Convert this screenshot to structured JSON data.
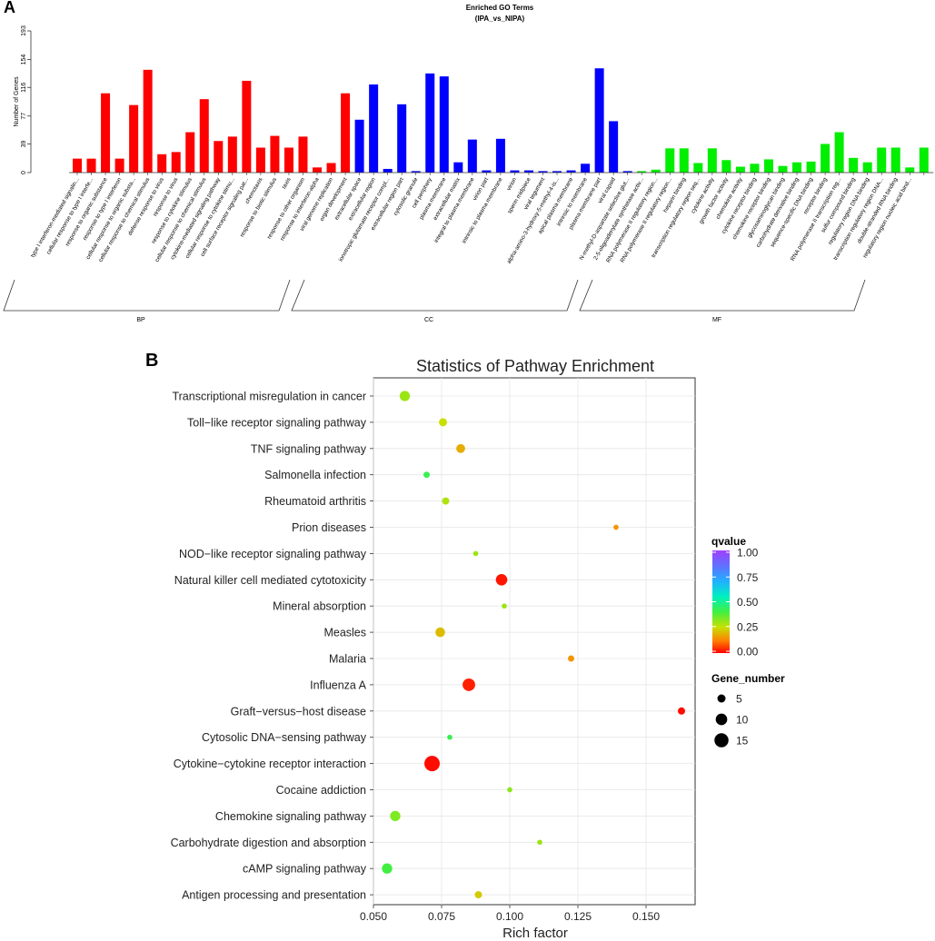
{
  "panel_a": {
    "label": "A",
    "chart_data": {
      "type": "bar",
      "title": "Enriched GO Terms",
      "subtitle": "(IPA_vs_NIPA)",
      "ylabel": "Number of Genes",
      "ylim": [
        0,
        193
      ],
      "yticks": [
        0,
        39,
        77,
        116,
        154,
        193
      ],
      "group_labels": [
        "BP",
        "CC",
        "MF"
      ],
      "colors": {
        "BP": "#ff0000",
        "CC": "#0000ff",
        "MF": "#00ee00"
      },
      "categories": [
        {
          "label": "type I interferon-mediated signalin...",
          "group": "BP",
          "value": 19
        },
        {
          "label": "cellular response to type I interfe...",
          "group": "BP",
          "value": 19
        },
        {
          "label": "response to organic substance",
          "group": "BP",
          "value": 108
        },
        {
          "label": "response to type I interferon",
          "group": "BP",
          "value": 19
        },
        {
          "label": "cellular response to organic substa...",
          "group": "BP",
          "value": 92
        },
        {
          "label": "cellular response to chemical stimulus",
          "group": "BP",
          "value": 140
        },
        {
          "label": "defense response to virus",
          "group": "BP",
          "value": 25
        },
        {
          "label": "response to virus",
          "group": "BP",
          "value": 28
        },
        {
          "label": "response to cytokine stimulus",
          "group": "BP",
          "value": 55
        },
        {
          "label": "cellular response to chemical stimulus",
          "group": "BP",
          "value": 100
        },
        {
          "label": "cytokine-mediated signaling pathway",
          "group": "BP",
          "value": 43
        },
        {
          "label": "cellular response to cytokine stimu...",
          "group": "BP",
          "value": 49
        },
        {
          "label": "cell surface receptor signaling pat...",
          "group": "BP",
          "value": 125
        },
        {
          "label": "chemotaxis",
          "group": "BP",
          "value": 34
        },
        {
          "label": "response to biotic stimulus",
          "group": "BP",
          "value": 50
        },
        {
          "label": "taxis",
          "group": "BP",
          "value": 34
        },
        {
          "label": "response to other organism",
          "group": "BP",
          "value": 49
        },
        {
          "label": "response to interferon-alpha",
          "group": "BP",
          "value": 7
        },
        {
          "label": "viral genome replication",
          "group": "BP",
          "value": 13
        },
        {
          "label": "organ development",
          "group": "BP",
          "value": 108
        },
        {
          "label": "extracellular space",
          "group": "CC",
          "value": 72
        },
        {
          "label": "extracellular region",
          "group": "CC",
          "value": 120
        },
        {
          "label": "ionotropic glutamate receptor compl...",
          "group": "CC",
          "value": 5
        },
        {
          "label": "extracellular region part",
          "group": "CC",
          "value": 93
        },
        {
          "label": "cytosolic granule",
          "group": "CC",
          "value": 2
        },
        {
          "label": "cell periphery",
          "group": "CC",
          "value": 135
        },
        {
          "label": "plasma membrane",
          "group": "CC",
          "value": 131
        },
        {
          "label": "extracellular matrix",
          "group": "CC",
          "value": 14
        },
        {
          "label": "integral to plasma membrane",
          "group": "CC",
          "value": 45
        },
        {
          "label": "virion part",
          "group": "CC",
          "value": 3
        },
        {
          "label": "intrinsic to plasma membrane",
          "group": "CC",
          "value": 46
        },
        {
          "label": "virion",
          "group": "CC",
          "value": 3
        },
        {
          "label": "sperm midpiece",
          "group": "CC",
          "value": 3
        },
        {
          "label": "viral tegument",
          "group": "CC",
          "value": 2
        },
        {
          "label": "alpha-amino-3-hydroxy-5-methyl-4-is...",
          "group": "CC",
          "value": 2
        },
        {
          "label": "apical plasma membrane",
          "group": "CC",
          "value": 3
        },
        {
          "label": "intrinsic to membrane",
          "group": "CC",
          "value": 12
        },
        {
          "label": "plasma membrane part",
          "group": "CC",
          "value": 142
        },
        {
          "label": "viral capsid",
          "group": "CC",
          "value": 70
        },
        {
          "label": "N-methyl-D-aspartate selective glut...",
          "group": "CC",
          "value": 2
        },
        {
          "label": "2-5-oligoadenylate synthetase activ...",
          "group": "MF",
          "value": 2
        },
        {
          "label": "RNA polymerase II regulatory region...",
          "group": "MF",
          "value": 4
        },
        {
          "label": "RNA polymerase II regulatory region...",
          "group": "MF",
          "value": 33
        },
        {
          "label": "heparin binding",
          "group": "MF",
          "value": 33
        },
        {
          "label": "transcription regulatory region seq...",
          "group": "MF",
          "value": 13
        },
        {
          "label": "cytokine activity",
          "group": "MF",
          "value": 33
        },
        {
          "label": "growth factor activity",
          "group": "MF",
          "value": 17
        },
        {
          "label": "chemokine activity",
          "group": "MF",
          "value": 8
        },
        {
          "label": "cytokine receptor binding",
          "group": "MF",
          "value": 12
        },
        {
          "label": "chemokine receptor binding",
          "group": "MF",
          "value": 18
        },
        {
          "label": "glycosaminoglycan binding",
          "group": "MF",
          "value": 9
        },
        {
          "label": "carbohydrate derivative binding",
          "group": "MF",
          "value": 14
        },
        {
          "label": "sequence-specific DNA binding",
          "group": "MF",
          "value": 15
        },
        {
          "label": "receptor binding",
          "group": "MF",
          "value": 39
        },
        {
          "label": "RNA polymerase II transcription reg...",
          "group": "MF",
          "value": 55
        },
        {
          "label": "sulfur compound binding",
          "group": "MF",
          "value": 20
        },
        {
          "label": "regulatory region DNA binding",
          "group": "MF",
          "value": 14
        },
        {
          "label": "transcription regulatory region DNA...",
          "group": "MF",
          "value": 34
        },
        {
          "label": "double-stranded RNA binding",
          "group": "MF",
          "value": 34
        },
        {
          "label": "regulatory region nucleic acid bind...",
          "group": "MF",
          "value": 7
        },
        {
          "label": "",
          "group": "MF",
          "value": 34
        }
      ]
    }
  },
  "panel_b": {
    "label": "B",
    "chart_data": {
      "type": "scatter",
      "title": "Statistics of Pathway Enrichment",
      "xlabel": "Rich factor",
      "xlim": [
        0.05,
        0.168
      ],
      "xticks": [
        "0.050",
        "0.075",
        "0.100",
        "0.125",
        "0.150"
      ],
      "legend": {
        "color_title": "qvalue",
        "color_ticks": [
          "1.00",
          "0.75",
          "0.50",
          "0.25",
          "0.00"
        ],
        "size_title": "Gene_number",
        "size_values": [
          5,
          10,
          15
        ],
        "size_labels": [
          "5",
          "10",
          "15"
        ]
      },
      "points": [
        {
          "pathway": "Transcriptional misregulation in cancer",
          "rich_factor": 0.0615,
          "qvalue": 0.3,
          "gene_number": 8
        },
        {
          "pathway": "Toll−like receptor signaling pathway",
          "rich_factor": 0.0755,
          "qvalue": 0.25,
          "gene_number": 5
        },
        {
          "pathway": "TNF signaling pathway",
          "rich_factor": 0.082,
          "qvalue": 0.18,
          "gene_number": 6
        },
        {
          "pathway": "Salmonella infection",
          "rich_factor": 0.0695,
          "qvalue": 0.42,
          "gene_number": 3
        },
        {
          "pathway": "Rheumatoid arthritis",
          "rich_factor": 0.0765,
          "qvalue": 0.28,
          "gene_number": 4
        },
        {
          "pathway": "Prion diseases",
          "rich_factor": 0.139,
          "qvalue": 0.15,
          "gene_number": 2
        },
        {
          "pathway": "NOD−like receptor signaling pathway",
          "rich_factor": 0.0875,
          "qvalue": 0.3,
          "gene_number": 2
        },
        {
          "pathway": "Natural killer cell mediated cytotoxicity",
          "rich_factor": 0.097,
          "qvalue": 0.02,
          "gene_number": 10
        },
        {
          "pathway": "Mineral absorption",
          "rich_factor": 0.098,
          "qvalue": 0.3,
          "gene_number": 2
        },
        {
          "pathway": "Measles",
          "rich_factor": 0.0745,
          "qvalue": 0.2,
          "gene_number": 7
        },
        {
          "pathway": "Malaria",
          "rich_factor": 0.1225,
          "qvalue": 0.15,
          "gene_number": 3
        },
        {
          "pathway": "Influenza A",
          "rich_factor": 0.085,
          "qvalue": 0.03,
          "gene_number": 12
        },
        {
          "pathway": "Graft−versus−host disease",
          "rich_factor": 0.163,
          "qvalue": 0.01,
          "gene_number": 4
        },
        {
          "pathway": "Cytosolic DNA−sensing pathway",
          "rich_factor": 0.078,
          "qvalue": 0.42,
          "gene_number": 2
        },
        {
          "pathway": "Cytokine−cytokine receptor interaction",
          "rich_factor": 0.0715,
          "qvalue": 0.01,
          "gene_number": 18
        },
        {
          "pathway": "Cocaine addiction",
          "rich_factor": 0.1,
          "qvalue": 0.32,
          "gene_number": 2
        },
        {
          "pathway": "Chemokine signaling pathway",
          "rich_factor": 0.058,
          "qvalue": 0.33,
          "gene_number": 8
        },
        {
          "pathway": "Carbohydrate digestion and absorption",
          "rich_factor": 0.111,
          "qvalue": 0.3,
          "gene_number": 2
        },
        {
          "pathway": "cAMP signaling pathway",
          "rich_factor": 0.055,
          "qvalue": 0.4,
          "gene_number": 8
        },
        {
          "pathway": "Antigen processing and presentation",
          "rich_factor": 0.0885,
          "qvalue": 0.22,
          "gene_number": 4
        }
      ]
    }
  }
}
